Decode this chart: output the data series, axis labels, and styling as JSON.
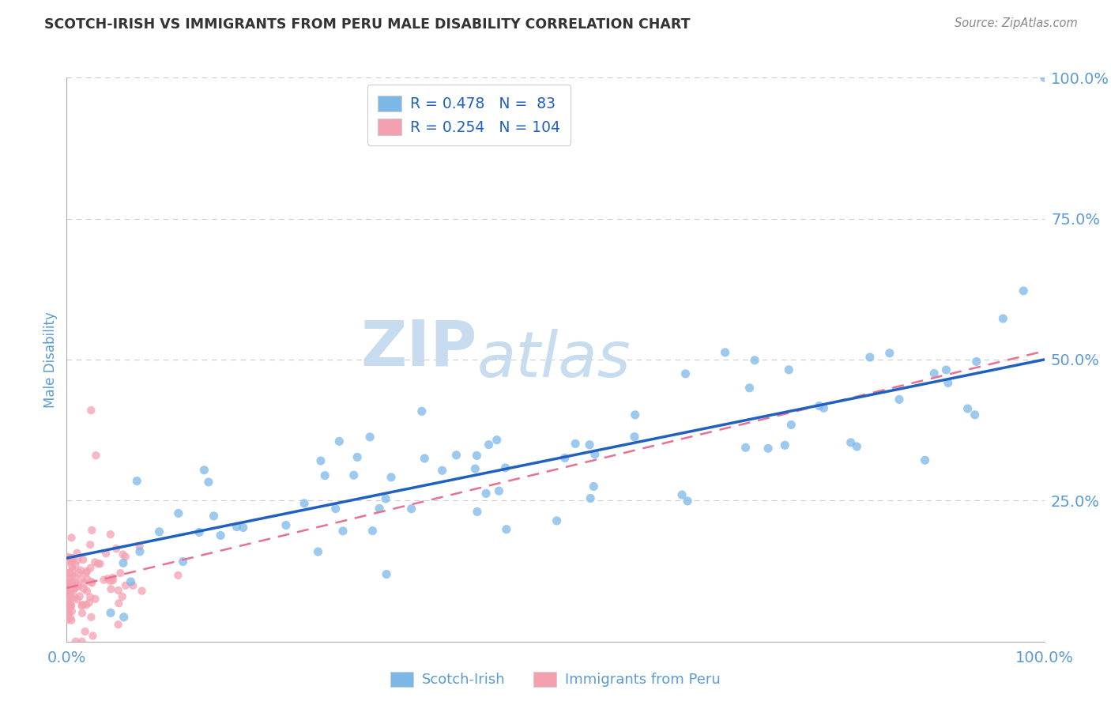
{
  "title": "SCOTCH-IRISH VS IMMIGRANTS FROM PERU MALE DISABILITY CORRELATION CHART",
  "source_text": "Source: ZipAtlas.com",
  "ylabel": "Male Disability",
  "watermark_zip": "ZIP",
  "watermark_atlas": "atlas",
  "legend_r1": "R = 0.478",
  "legend_n1": "N =  83",
  "legend_r2": "R = 0.254",
  "legend_n2": "N = 104",
  "blue_scatter_color": "#7BB8E8",
  "pink_scatter_color": "#F4A0B0",
  "blue_line_color": "#2060C0",
  "pink_line_color": "#E87090",
  "axis_tick_color": "#5B9BD5",
  "ylabel_color": "#5B9BD5",
  "title_color": "#333333",
  "source_color": "#888888",
  "watermark_color": "#C8DCF0",
  "grid_color": "#CCCCCC",
  "legend_box_color": "#CCCCCC",
  "blue_intercept": 0.148,
  "blue_slope": 0.352,
  "pink_intercept": 0.095,
  "pink_slope": 0.42,
  "si_seed": 77,
  "peru_seed": 88
}
